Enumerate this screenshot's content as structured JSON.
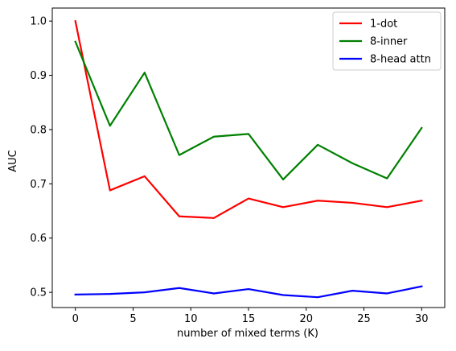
{
  "chart_data": {
    "type": "line",
    "title": "",
    "xlabel": "number of mixed terms (K)",
    "ylabel": "AUC",
    "x": [
      0,
      3,
      6,
      9,
      12,
      15,
      18,
      21,
      24,
      27,
      30
    ],
    "xlim": [
      -2,
      32
    ],
    "ylim": [
      0.472,
      1.024
    ],
    "xticks": [
      0,
      5,
      10,
      15,
      20,
      25,
      30
    ],
    "yticks": [
      0.5,
      0.6,
      0.7,
      0.8,
      0.9,
      1.0
    ],
    "xtick_labels": [
      "0",
      "5",
      "10",
      "15",
      "20",
      "25",
      "30"
    ],
    "ytick_labels": [
      "0.5",
      "0.6",
      "0.7",
      "0.8",
      "0.9",
      "1.0"
    ],
    "grid": false,
    "legend_position": "top-right",
    "series": [
      {
        "name": "1-dot",
        "color": "#ff0000",
        "values": [
          1.0,
          0.688,
          0.714,
          0.64,
          0.637,
          0.673,
          0.657,
          0.669,
          0.665,
          0.657,
          0.669
        ]
      },
      {
        "name": "8-inner",
        "color": "#008000",
        "values": [
          0.962,
          0.807,
          0.905,
          0.753,
          0.787,
          0.792,
          0.708,
          0.772,
          0.738,
          0.71,
          0.803
        ]
      },
      {
        "name": "8-head attn",
        "color": "#0000ff",
        "values": [
          0.496,
          0.497,
          0.5,
          0.508,
          0.498,
          0.506,
          0.495,
          0.491,
          0.503,
          0.498,
          0.511
        ]
      }
    ]
  }
}
